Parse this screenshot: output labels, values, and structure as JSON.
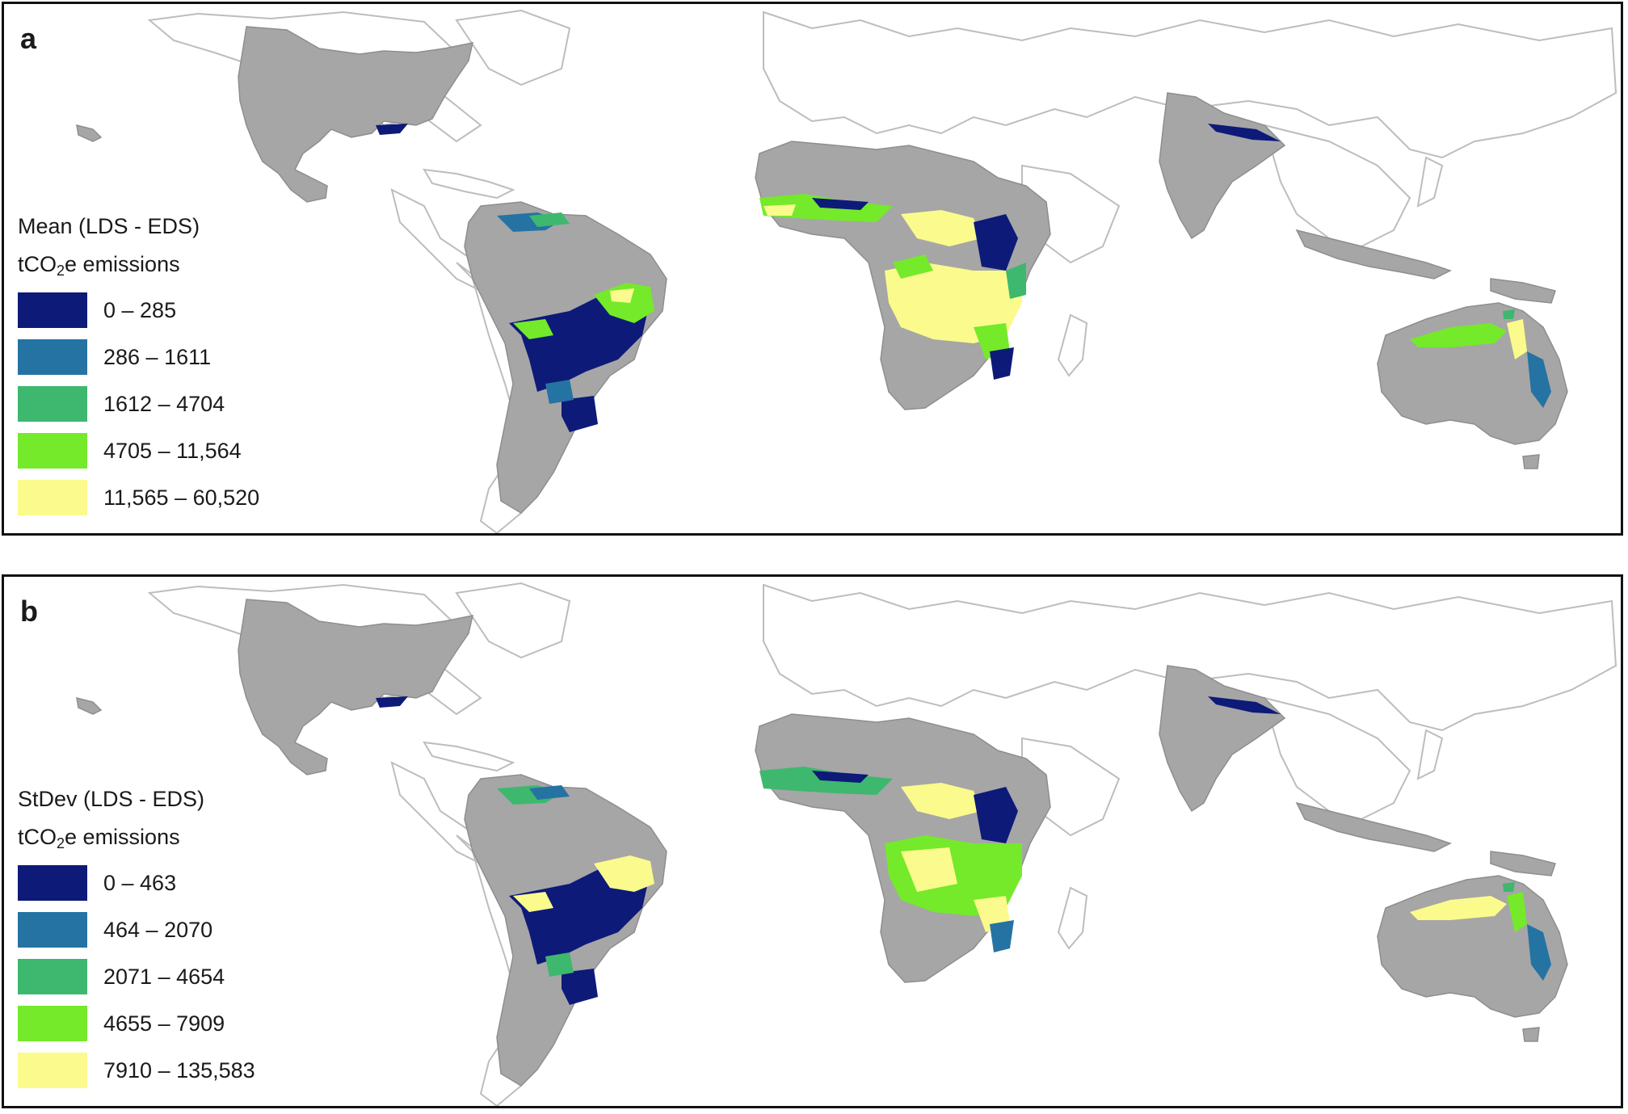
{
  "panels": [
    {
      "id": "a",
      "letter": "a",
      "legend": {
        "title": "Mean (LDS - EDS)",
        "subtitle_prefix": "tCO",
        "subtitle_sub": "2",
        "subtitle_suffix": "e emissions",
        "classes": [
          {
            "label": "0 – 285",
            "color": "#0d1a78"
          },
          {
            "label": "286 – 1611",
            "color": "#2573a3"
          },
          {
            "label": "1612 – 4704",
            "color": "#3db86e"
          },
          {
            "label": "4705 – 11,564",
            "color": "#74ea2a"
          },
          {
            "label": "11,565 – 60,520",
            "color": "#fafb8c"
          }
        ]
      }
    },
    {
      "id": "b",
      "letter": "b",
      "legend": {
        "title": "StDev (LDS - EDS)",
        "subtitle_prefix": "tCO",
        "subtitle_sub": "2",
        "subtitle_suffix": "e emissions",
        "classes": [
          {
            "label": "0 – 463",
            "color": "#0d1a78"
          },
          {
            "label": "464 – 2070",
            "color": "#2573a3"
          },
          {
            "label": "2071 – 4654",
            "color": "#3db86e"
          },
          {
            "label": "4655 – 7909",
            "color": "#74ea2a"
          },
          {
            "label": "7910 – 135,583",
            "color": "#fafb8c"
          }
        ]
      }
    }
  ],
  "map_style": {
    "studied_land": "#a6a6a6",
    "other_land_outline": "#bdbdbd",
    "background": "#ffffff"
  }
}
